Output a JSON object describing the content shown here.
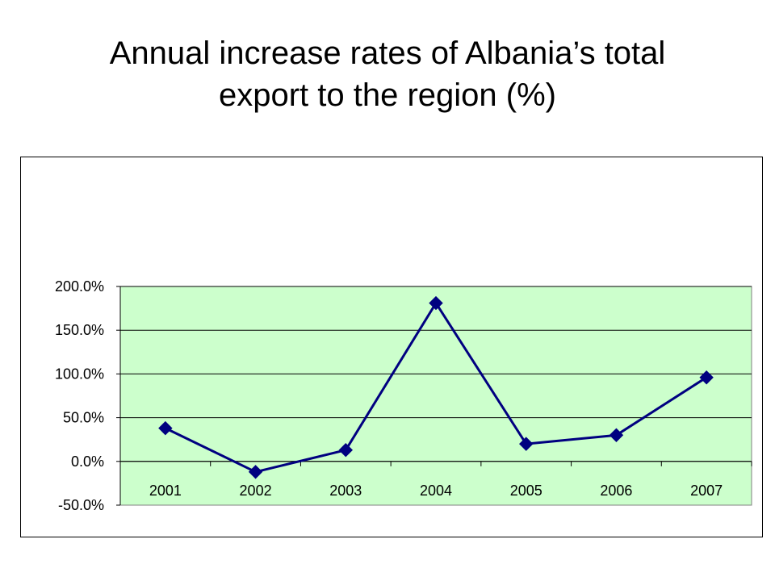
{
  "slide": {
    "title_line1": "Annual increase rates of Albania’s total",
    "title_line2": "export to the region (%)"
  },
  "chart_data": {
    "type": "line",
    "title": "Annual increase rates of Albania’s total export to the region (%)",
    "xlabel": "",
    "ylabel": "",
    "categories": [
      "2001",
      "2002",
      "2003",
      "2004",
      "2005",
      "2006",
      "2007"
    ],
    "series": [
      {
        "values": [
          38.0,
          -12.0,
          13.0,
          181.0,
          20.0,
          30.0,
          96.0
        ]
      }
    ],
    "ylim": [
      -50,
      200
    ],
    "y_ticks": [
      200,
      150,
      100,
      50,
      0,
      -50
    ],
    "y_tick_labels": [
      "200.0%",
      "150.0%",
      "100.0%",
      "50.0%",
      "0.0%",
      "-50.0%"
    ],
    "grid": true,
    "legend": "none",
    "marker": "diamond",
    "colors": {
      "plot_background": "#ccffcc",
      "line": "#000080",
      "marker": "#000080",
      "gridline": "#000000"
    }
  }
}
